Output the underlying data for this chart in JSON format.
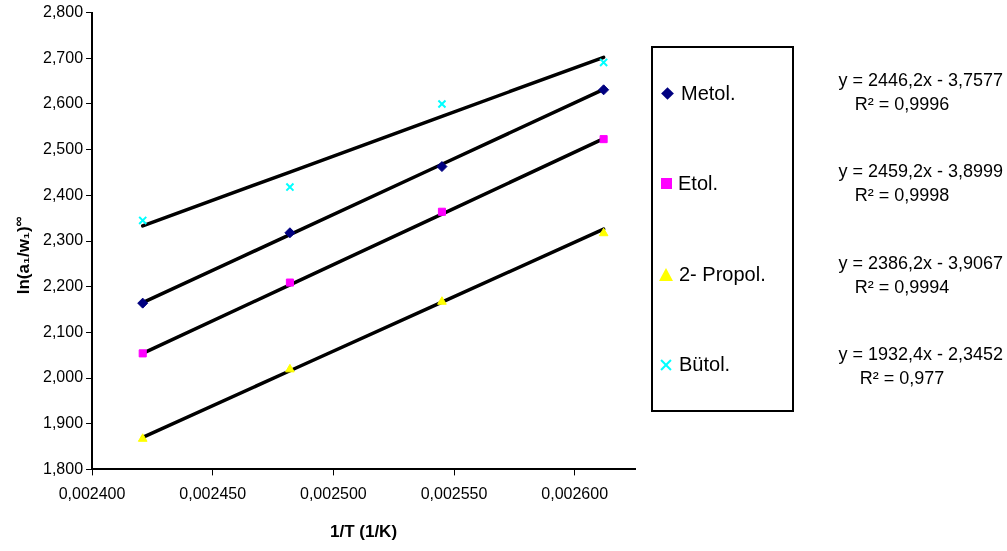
{
  "chart_data": {
    "type": "scatter",
    "xlabel": "1/T (1/K)",
    "ylabel": "ln(a₁/w₁)$^{∞}$",
    "xlim": [
      0.0024,
      0.002625
    ],
    "xticks": [
      {
        "value": 0.0024,
        "label": "0,002400"
      },
      {
        "value": 0.00245,
        "label": "0,002450"
      },
      {
        "value": 0.0025,
        "label": "0,002500"
      },
      {
        "value": 0.00255,
        "label": "0,002550"
      },
      {
        "value": 0.0026,
        "label": "0,002600"
      }
    ],
    "ylim": [
      1.8,
      2.8
    ],
    "yticks": [
      {
        "value": 1.8,
        "label": "1,800"
      },
      {
        "value": 1.9,
        "label": "1,900"
      },
      {
        "value": 2.0,
        "label": "2,000"
      },
      {
        "value": 2.1,
        "label": "2,100"
      },
      {
        "value": 2.2,
        "label": "2,200"
      },
      {
        "value": 2.3,
        "label": "2,300"
      },
      {
        "value": 2.4,
        "label": "2,400"
      },
      {
        "value": 2.5,
        "label": "2,500"
      },
      {
        "value": 2.6,
        "label": "2,600"
      },
      {
        "value": 2.7,
        "label": "2,700"
      },
      {
        "value": 2.8,
        "label": "2,800"
      }
    ],
    "x": [
      0.002421,
      0.002482,
      0.002545,
      0.002612
    ],
    "grid": false,
    "legend": "right",
    "series": [
      {
        "name": "Metol.",
        "color": "#000080",
        "marker": "diamond",
        "values": [
          2.164,
          2.318,
          2.463,
          2.631
        ]
      },
      {
        "name": "Etol.",
        "color": "#ff00ff",
        "marker": "square",
        "values": [
          2.054,
          2.209,
          2.364,
          2.523
        ]
      },
      {
        "name": "2- Propol.",
        "color": "#ffff00",
        "marker": "triangle",
        "values": [
          1.867,
          2.019,
          2.167,
          2.317
        ]
      },
      {
        "name": "Bütol.",
        "color": "#00ffff",
        "marker": "cross",
        "values": [
          2.345,
          2.418,
          2.6,
          2.691
        ]
      },
      {
        "type": "line",
        "color": "#000000",
        "marker": "none",
        "values": [
          2.165,
          2.314,
          2.468,
          2.632
        ]
      },
      {
        "type": "line",
        "color": "#000000",
        "marker": "none",
        "values": [
          2.054,
          2.204,
          2.359,
          2.524
        ]
      },
      {
        "type": "line",
        "color": "#000000",
        "marker": "none",
        "values": [
          1.87,
          2.016,
          2.166,
          2.326
        ]
      },
      {
        "type": "line",
        "color": "#000000",
        "marker": "none",
        "values": [
          2.333,
          2.451,
          2.573,
          2.702
        ]
      }
    ],
    "annotations": [
      "y = 2446,2x - 3,7577",
      "R² = 0,9996",
      "y = 2459,2x - 3,8999",
      "R² = 0,9998",
      "y = 2386,2x - 3,9067",
      "R² = 0,9994",
      "y = 1932,4x - 2,3452",
      "R² = 0,977"
    ]
  }
}
